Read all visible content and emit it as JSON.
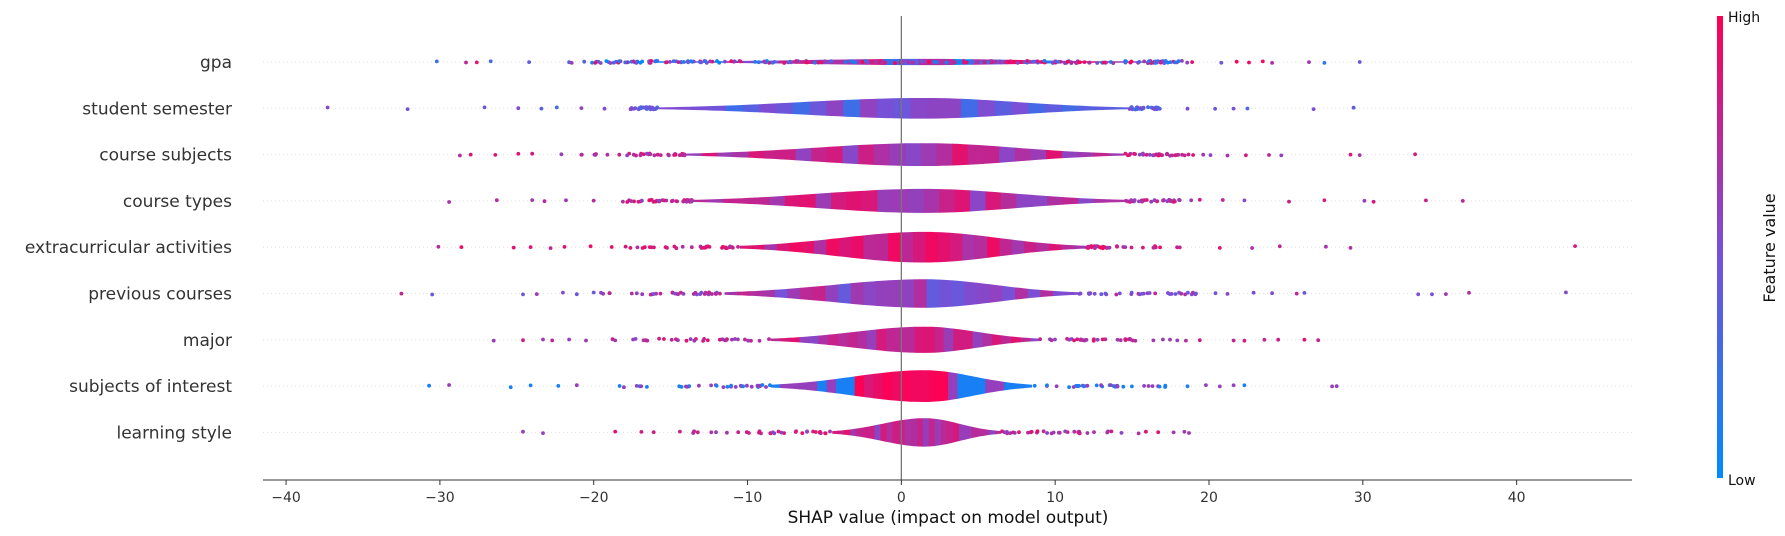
{
  "chart_data": {
    "type": "scatter",
    "subtype": "shap-violin-summary",
    "xlabel": "SHAP value (impact on model output)",
    "xlim": [
      -41.5,
      47.5
    ],
    "xticks": [
      -40,
      -30,
      -20,
      -10,
      0,
      10,
      20,
      30,
      40
    ],
    "grid": false,
    "colorbar": {
      "title": "Feature value",
      "high": "High",
      "low": "Low",
      "colors": [
        "#008bfb",
        "#7a4fd6",
        "#ff0052"
      ]
    },
    "features": [
      {
        "name": "gpa",
        "color": "mixed",
        "range": [
          -30.2,
          29.8
        ],
        "body": [
          -16,
          16
        ],
        "width": 0.02,
        "outliers": [
          -30.2,
          -28.3,
          -27.6,
          -26.7,
          -24.2,
          -21.6,
          18.9,
          20.8,
          21.8,
          22.6,
          23.5,
          24.1,
          26.5,
          27.5,
          29.8
        ]
      },
      {
        "name": "student semester",
        "color": "blue",
        "range": [
          -37.3,
          29.4
        ],
        "body": [
          -15.8,
          14.8
        ],
        "width": 0.15,
        "outliers": [
          -37.3,
          -32.1,
          -27.1,
          -24.9,
          -23.4,
          -22.4,
          -20.8,
          -19.3,
          -17.6,
          16.8,
          18.6,
          20.4,
          21.6,
          22.5,
          26.8,
          29.4
        ]
      },
      {
        "name": "course subjects",
        "color": "purple",
        "range": [
          -28.7,
          33.4
        ],
        "body": [
          -14,
          14.5
        ],
        "width": 0.17,
        "outliers": [
          -28.7,
          -28.0,
          -26.4,
          -24.9,
          -24.0,
          -22.1,
          -20.8,
          20.1,
          21.2,
          22.4,
          23.9,
          24.7,
          29.2,
          29.8,
          33.4
        ]
      },
      {
        "name": "course types",
        "color": "purple",
        "range": [
          -29.4,
          36.5
        ],
        "body": [
          -13.6,
          14.5
        ],
        "width": 0.18,
        "outliers": [
          -29.4,
          -26.3,
          -24.0,
          -23.2,
          -21.8,
          -20.0,
          -18.1,
          19.4,
          20.9,
          22.3,
          25.2,
          27.5,
          30.1,
          30.7,
          34.1,
          36.5
        ]
      },
      {
        "name": "extracurricular activities",
        "color": "magenta",
        "range": [
          -30.1,
          43.8
        ],
        "body": [
          -10.5,
          12
        ],
        "width": 0.24,
        "outliers": [
          -30.1,
          -28.6,
          -25.2,
          -24.1,
          -22.8,
          -21.9,
          -20.2,
          18.1,
          20.7,
          22.8,
          24.6,
          27.6,
          29.2,
          43.8
        ]
      },
      {
        "name": "previous courses",
        "color": "violet",
        "range": [
          -32.5,
          43.2
        ],
        "body": [
          -11.5,
          11.5
        ],
        "width": 0.22,
        "outliers": [
          -32.5,
          -30.5,
          -24.6,
          -23.7,
          -22.0,
          -21.1,
          -20.0,
          21.2,
          22.9,
          24.1,
          25.7,
          26.2,
          33.6,
          34.5,
          35.4,
          36.9,
          43.2
        ]
      },
      {
        "name": "major",
        "color": "purple",
        "range": [
          -26.5,
          27.1
        ],
        "body": [
          -8.5,
          9
        ],
        "width": 0.2,
        "outliers": [
          -26.5,
          -24.6,
          -23.3,
          -22.7,
          -21.6,
          -20.5,
          18.5,
          19.4,
          21.6,
          22.3,
          23.6,
          24.5,
          26.2,
          27.1
        ]
      },
      {
        "name": "subjects of interest",
        "color": "redblue",
        "range": [
          -30.7,
          28.3
        ],
        "body": [
          -8.5,
          8.5
        ],
        "width": 0.25,
        "outliers": [
          -30.7,
          -29.4,
          -25.4,
          -24.1,
          -22.3,
          -21.1,
          18.6,
          19.8,
          20.7,
          21.6,
          22.3,
          28.0,
          28.3
        ]
      },
      {
        "name": "learning style",
        "color": "purple",
        "range": [
          -24.6,
          18.7
        ],
        "body": [
          -4.5,
          6.5
        ],
        "width": 0.22,
        "outliers": [
          -24.6,
          -23.3,
          -18.6,
          -16.9,
          -16.1,
          15.9,
          16.7,
          17.7,
          18.4,
          18.7
        ]
      }
    ]
  }
}
